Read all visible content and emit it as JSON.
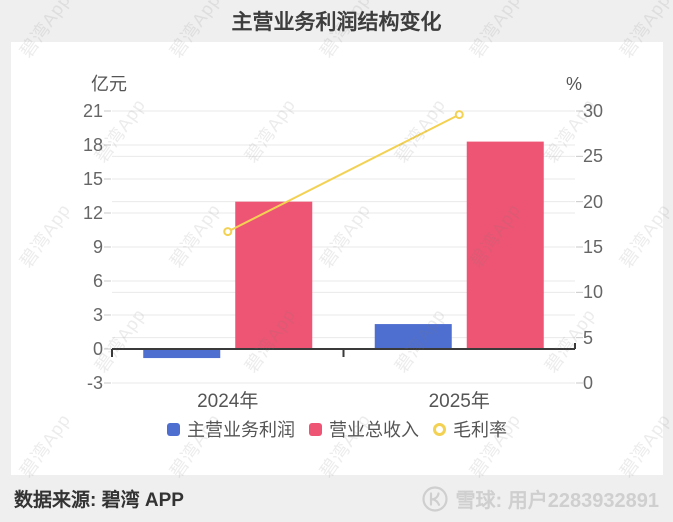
{
  "title": "主营业务利润结构变化",
  "watermark": "碧湾App",
  "footer": {
    "source": "数据来源: 碧湾 APP",
    "credit": "雪球: 用户2283932891"
  },
  "chart_data": {
    "type": "bar",
    "title": "主营业务利润结构变化",
    "categories": [
      "2024年",
      "2025年"
    ],
    "series": [
      {
        "name": "主营业务利润",
        "type": "bar",
        "yaxis": "left",
        "color": "#4f6fd0",
        "values": [
          -0.8,
          2.2
        ]
      },
      {
        "name": "营业总收入",
        "type": "bar",
        "yaxis": "left",
        "color": "#ee5574",
        "values": [
          13.0,
          18.3
        ]
      },
      {
        "name": "毛利率",
        "type": "line",
        "yaxis": "right",
        "color": "#f3d153",
        "values": [
          16.7,
          29.6
        ]
      }
    ],
    "left_axis": {
      "name": "亿元",
      "min": -3,
      "max": 21,
      "ticks": [
        21,
        18,
        15,
        12,
        9,
        6,
        3,
        0,
        -3
      ]
    },
    "right_axis": {
      "name": "%",
      "min": 0,
      "max": 30,
      "ticks": [
        30,
        25,
        20,
        15,
        10,
        5,
        0
      ]
    },
    "legend": {
      "position": "bottom",
      "items": [
        "主营业务利润",
        "营业总收入",
        "毛利率"
      ]
    },
    "grid": true,
    "colors": {
      "grid_line": "#e9e9e9",
      "zero_axis": "#3a3a3a",
      "tick_text": "#666666",
      "title_text": "#3d3d3d",
      "credit_text": "#cfcfcf"
    }
  }
}
